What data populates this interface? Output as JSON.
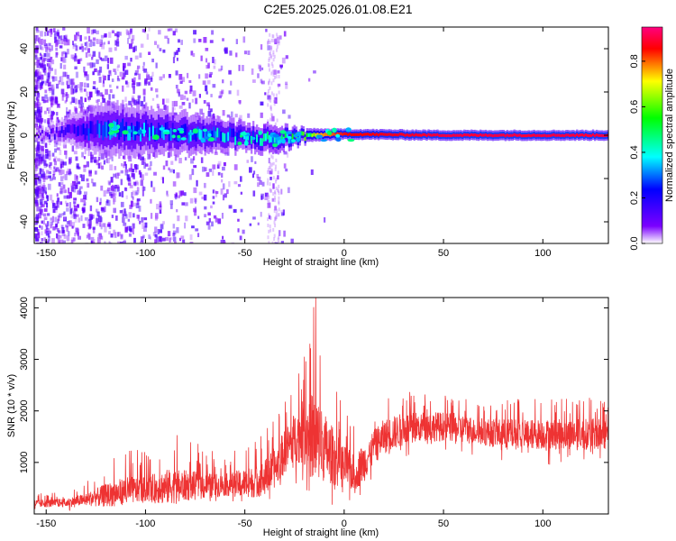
{
  "figure": {
    "title": "C2E5.2025.026.01.08.E21"
  },
  "chart_data": [
    {
      "type": "heatmap",
      "xlabel": "Height of straight line (km)",
      "ylabel": "Frequency (Hz)",
      "xlim": [
        -156,
        133
      ],
      "ylim": [
        -50,
        50
      ],
      "x_ticks": [
        -150,
        -100,
        -50,
        0,
        50,
        100
      ],
      "x_tick_labels": [
        "-150",
        "-100",
        "-50",
        "0",
        "50",
        "100"
      ],
      "y_ticks": [
        -40,
        -20,
        0,
        20,
        40
      ],
      "y_tick_labels": [
        "-40",
        "-20",
        "0",
        "20",
        "40"
      ],
      "colorbar": {
        "label": "Normalized spectral amplitude",
        "range": [
          0,
          0.95
        ],
        "ticks": [
          0,
          0.2,
          0.4,
          0.6,
          0.8
        ],
        "tick_labels": [
          "0.0",
          "0.2",
          "0.4",
          "0.6",
          "0.8"
        ],
        "colormap": [
          "#ffffff",
          "#7b00ff",
          "#0000ff",
          "#00ffff",
          "#00ff00",
          "#ffff00",
          "#ff0000",
          "#ff0080"
        ]
      },
      "band_profile": [
        {
          "x": -156,
          "center_hz": 0,
          "halfwidth_hz": 1,
          "peak_amplitude": 0.1
        },
        {
          "x": -120,
          "center_hz": 3,
          "halfwidth_hz": 8,
          "peak_amplitude": 0.35
        },
        {
          "x": -80,
          "center_hz": 1,
          "halfwidth_hz": 6,
          "peak_amplitude": 0.4
        },
        {
          "x": -50,
          "center_hz": -1,
          "halfwidth_hz": 4,
          "peak_amplitude": 0.45
        },
        {
          "x": -35,
          "center_hz": -2,
          "halfwidth_hz": 4,
          "peak_amplitude": 0.5
        },
        {
          "x": -20,
          "center_hz": 0,
          "halfwidth_hz": 2,
          "peak_amplitude": 0.7
        },
        {
          "x": 0,
          "center_hz": 0.5,
          "halfwidth_hz": 1.5,
          "peak_amplitude": 0.85
        },
        {
          "x": 50,
          "center_hz": 0,
          "halfwidth_hz": 1.5,
          "peak_amplitude": 0.9
        },
        {
          "x": 133,
          "center_hz": 0,
          "halfwidth_hz": 1.5,
          "peak_amplitude": 0.9
        }
      ],
      "grid": false
    },
    {
      "type": "line",
      "xlabel": "Height of straight line (km)",
      "ylabel": "SNR (10 * v/v)",
      "xlim": [
        -156,
        133
      ],
      "ylim": [
        0,
        4200
      ],
      "x_ticks": [
        -150,
        -100,
        -50,
        0,
        50,
        100
      ],
      "x_tick_labels": [
        "-150",
        "-100",
        "-50",
        "0",
        "50",
        "100"
      ],
      "y_ticks": [
        1000,
        2000,
        3000,
        4000
      ],
      "y_tick_labels": [
        "1000",
        "2000",
        "3000",
        "4000"
      ],
      "series": [
        {
          "color": "#ee3333",
          "x": [
            -156,
            -140,
            -130,
            -120,
            -110,
            -100,
            -90,
            -80,
            -70,
            -60,
            -50,
            -45,
            -40,
            -35,
            -30,
            -25,
            -20,
            -15,
            -10,
            -5,
            0,
            5,
            10,
            15,
            20,
            30,
            40,
            50,
            60,
            70,
            80,
            90,
            100,
            110,
            120,
            133
          ],
          "mean": [
            200,
            220,
            280,
            360,
            450,
            480,
            520,
            550,
            540,
            560,
            600,
            620,
            700,
            900,
            1200,
            1500,
            1600,
            1500,
            1300,
            1100,
            900,
            800,
            1000,
            1300,
            1500,
            1650,
            1700,
            1700,
            1650,
            1600,
            1550,
            1550,
            1550,
            1550,
            1550,
            1550
          ],
          "max": [
            400,
            420,
            600,
            1100,
            1300,
            1200,
            1700,
            1500,
            1300,
            1100,
            1400,
            1500,
            1700,
            1900,
            2200,
            2600,
            3300,
            4200,
            3200,
            2600,
            2000,
            1800,
            2100,
            2200,
            2400,
            2450,
            2350,
            2300,
            2250,
            2200,
            2250,
            2300,
            2250,
            2250,
            2300,
            2300
          ],
          "min": [
            50,
            50,
            60,
            80,
            100,
            120,
            150,
            150,
            150,
            160,
            150,
            140,
            120,
            150,
            300,
            500,
            400,
            300,
            200,
            150,
            100,
            200,
            400,
            700,
            900,
            1000,
            1050,
            1050,
            1000,
            1000,
            950,
            950,
            950,
            950,
            950,
            950
          ]
        }
      ],
      "grid": false
    }
  ]
}
